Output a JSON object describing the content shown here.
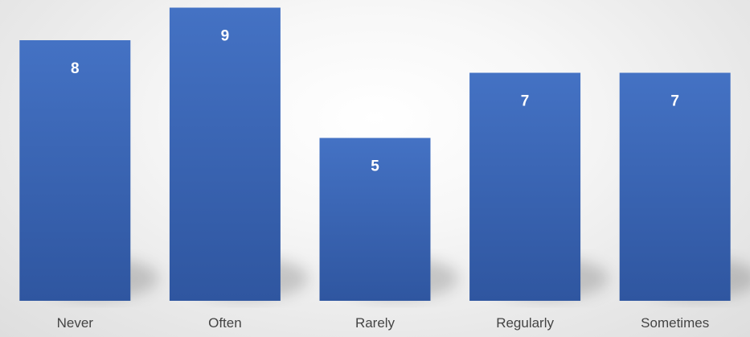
{
  "chart_data": {
    "type": "bar",
    "title": "",
    "xlabel": "",
    "ylabel": "",
    "categories": [
      "Never",
      "Often",
      "Rarely",
      "Regularly",
      "Sometimes"
    ],
    "values": [
      8,
      9,
      5,
      7,
      7
    ],
    "ylim": [
      0,
      9
    ],
    "grid": false,
    "legend": "none",
    "data_labels": "inside-top",
    "bar_color": "#4472c4",
    "bar_color_dark": "#2f56a0",
    "label_color": "#ffffff",
    "category_label_color": "#444444"
  }
}
